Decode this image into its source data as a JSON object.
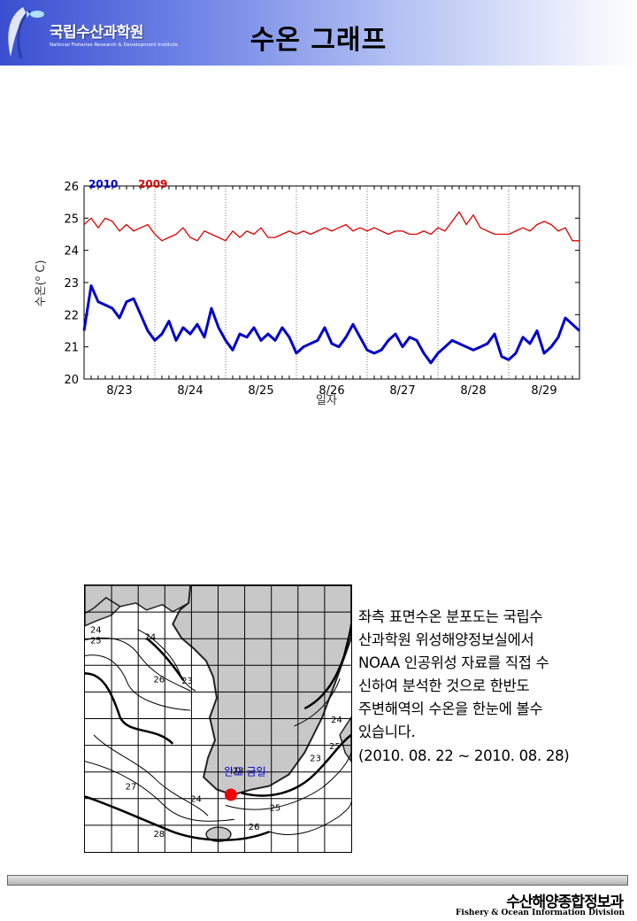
{
  "header": {
    "org_name": "국립수산과학원",
    "org_sub": "National Fisheries Research & Development Institute",
    "title": "수온 그래프"
  },
  "colors": {
    "series_2010": "#0000cc",
    "series_2009": "#dd0000",
    "marker": "#ee0000"
  },
  "chart_data": {
    "type": "line",
    "title": "",
    "xlabel": "일자",
    "ylabel": "수온(°C)",
    "ylabel_prefix": "수온(",
    "ylabel_sup": "o",
    "ylabel_suffix": " C)",
    "ylim": [
      20,
      26
    ],
    "yticks": [
      "20",
      "21",
      "22",
      "23",
      "24",
      "25",
      "26"
    ],
    "categories": [
      "8/23",
      "8/24",
      "8/25",
      "8/26",
      "8/27",
      "8/28",
      "8/29"
    ],
    "xlim": [
      0,
      7
    ],
    "grid": "vertical dotted",
    "legend_position": "top-left",
    "series": [
      {
        "name": "2010",
        "x": [
          0,
          0.1,
          0.2,
          0.3,
          0.4,
          0.5,
          0.6,
          0.7,
          0.8,
          0.9,
          1.0,
          1.1,
          1.2,
          1.3,
          1.4,
          1.5,
          1.6,
          1.7,
          1.8,
          1.9,
          2.0,
          2.1,
          2.2,
          2.3,
          2.4,
          2.5,
          2.6,
          2.7,
          2.8,
          2.9,
          3.0,
          3.1,
          3.2,
          3.3,
          3.4,
          3.5,
          3.6,
          3.7,
          3.8,
          3.9,
          4.0,
          4.1,
          4.2,
          4.3,
          4.4,
          4.5,
          4.6,
          4.7,
          4.8,
          4.9,
          5.0,
          5.1,
          5.2,
          5.3,
          5.4,
          5.5,
          5.6,
          5.7,
          5.8,
          5.9,
          6.0,
          6.1,
          6.2,
          6.3,
          6.4,
          6.5,
          6.6,
          6.7,
          6.8,
          6.9,
          7.0
        ],
        "values": [
          21.5,
          22.9,
          22.4,
          22.3,
          22.2,
          21.9,
          22.4,
          22.5,
          22.0,
          21.5,
          21.2,
          21.4,
          21.8,
          21.2,
          21.6,
          21.4,
          21.7,
          21.3,
          22.2,
          21.6,
          21.2,
          20.9,
          21.4,
          21.3,
          21.6,
          21.2,
          21.4,
          21.2,
          21.6,
          21.3,
          20.8,
          21.0,
          21.1,
          21.2,
          21.6,
          21.1,
          21.0,
          21.3,
          21.7,
          21.3,
          20.9,
          20.8,
          20.9,
          21.2,
          21.4,
          21.0,
          21.3,
          21.2,
          20.8,
          20.5,
          20.8,
          21.0,
          21.2,
          21.1,
          21.0,
          20.9,
          21.0,
          21.1,
          21.4,
          20.7,
          20.6,
          20.8,
          21.3,
          21.1,
          21.5,
          20.8,
          21.0,
          21.3,
          21.9,
          21.7,
          21.5
        ]
      },
      {
        "name": "2009",
        "x": [
          0,
          0.1,
          0.2,
          0.3,
          0.4,
          0.5,
          0.6,
          0.7,
          0.8,
          0.9,
          1.0,
          1.1,
          1.2,
          1.3,
          1.4,
          1.5,
          1.6,
          1.7,
          1.8,
          1.9,
          2.0,
          2.1,
          2.2,
          2.3,
          2.4,
          2.5,
          2.6,
          2.7,
          2.8,
          2.9,
          3.0,
          3.1,
          3.2,
          3.3,
          3.4,
          3.5,
          3.6,
          3.7,
          3.8,
          3.9,
          4.0,
          4.1,
          4.2,
          4.3,
          4.4,
          4.5,
          4.6,
          4.7,
          4.8,
          4.9,
          5.0,
          5.1,
          5.2,
          5.3,
          5.4,
          5.5,
          5.6,
          5.7,
          5.8,
          5.9,
          6.0,
          6.1,
          6.2,
          6.3,
          6.4,
          6.5,
          6.6,
          6.7,
          6.8,
          6.9,
          7.0
        ],
        "values": [
          24.8,
          25.0,
          24.7,
          25.0,
          24.9,
          24.6,
          24.8,
          24.6,
          24.7,
          24.8,
          24.5,
          24.3,
          24.4,
          24.5,
          24.7,
          24.4,
          24.3,
          24.6,
          24.5,
          24.4,
          24.3,
          24.6,
          24.4,
          24.6,
          24.5,
          24.7,
          24.4,
          24.4,
          24.5,
          24.6,
          24.5,
          24.6,
          24.5,
          24.6,
          24.7,
          24.6,
          24.7,
          24.8,
          24.6,
          24.7,
          24.6,
          24.7,
          24.6,
          24.5,
          24.6,
          24.6,
          24.5,
          24.5,
          24.6,
          24.5,
          24.7,
          24.6,
          24.9,
          25.2,
          24.8,
          25.1,
          24.7,
          24.6,
          24.5,
          24.5,
          24.5,
          24.6,
          24.7,
          24.6,
          24.8,
          24.9,
          24.8,
          24.6,
          24.7,
          24.3,
          24.3
        ]
      }
    ]
  },
  "map": {
    "contour_labels": [
      "24",
      "25",
      "24",
      "26",
      "23",
      "24",
      "23",
      "28",
      "27",
      "24",
      "25",
      "25",
      "26",
      "28"
    ],
    "location_label": "완도 금일"
  },
  "description": {
    "lines": [
      "좌측 표면수온 분포도는 국립수",
      "산과학원 위성해양정보실에서",
      "NOAA 인공위성 자료를 직접 수",
      "신하여 분석한 것으로  한반도",
      "주변해역의 수온을 한눈에 볼수",
      "있습니다."
    ],
    "period": "(2010. 08. 22 ~ 2010. 08. 28)"
  },
  "footer": {
    "title": "수산해양종합정보과",
    "subtitle": "Fishery & Ocean Information Division"
  }
}
